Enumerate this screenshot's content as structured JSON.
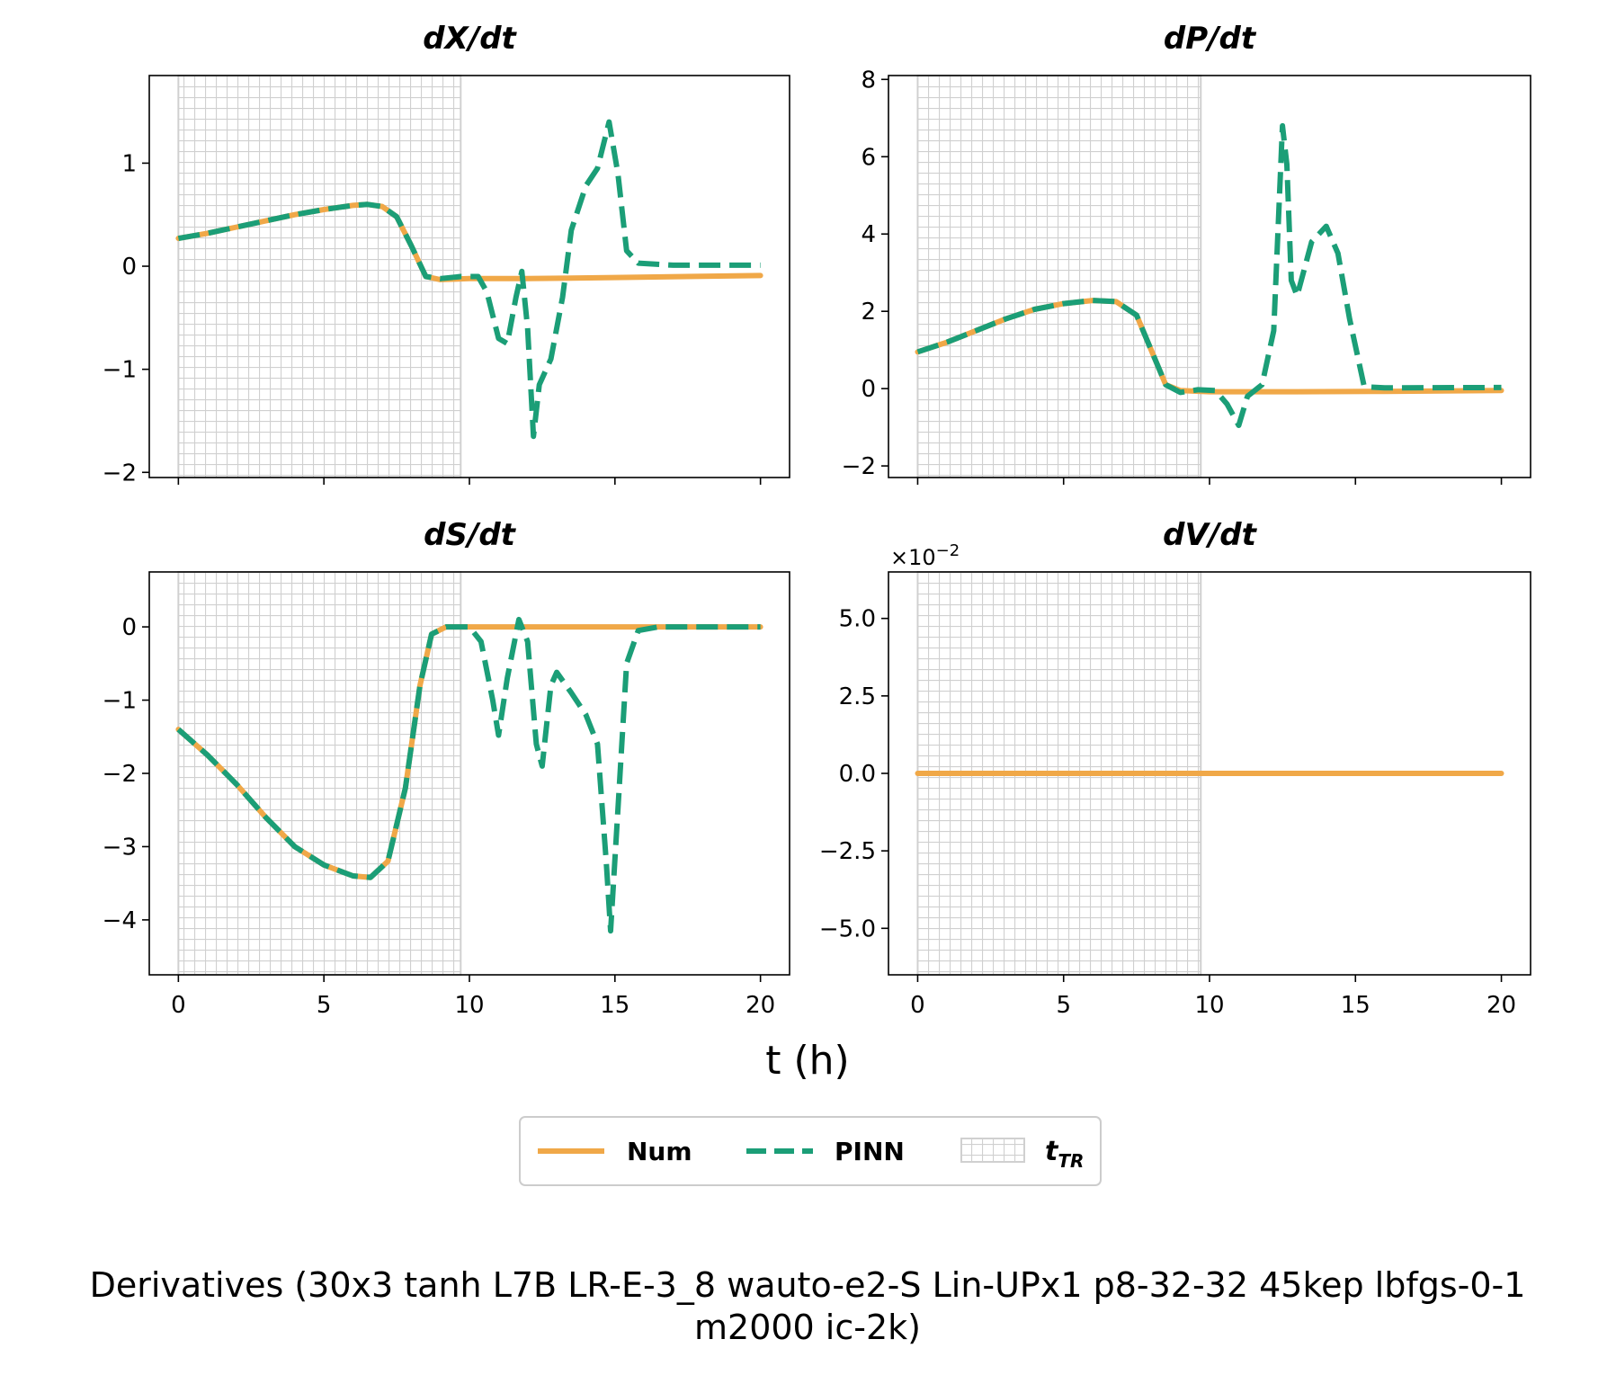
{
  "chart_data": {
    "type": "line",
    "suptitle_lines": [
      "Derivatives (30x3 tanh L7B LR-E-3_8 wauto-e2-S Lin-UPx1 p8-32-32 45kep lbfgs-0-1",
      "m2000 ic-2k)"
    ],
    "xlabel": "t (h)",
    "legend": {
      "placement": "below-center",
      "entries": [
        {
          "label": "Num",
          "style": "solid",
          "color": "#f0a848"
        },
        {
          "label": "PINN",
          "style": "dashed",
          "color": "#1b9e77"
        },
        {
          "label": "t",
          "sub": "TR",
          "style": "hatch",
          "color": "#d0d0d0"
        }
      ]
    },
    "training_region": [
      0,
      9.7
    ],
    "colors": {
      "num": "#f0a848",
      "pinn": "#1b9e77",
      "hatch": "#d0d0d0"
    },
    "subplots": [
      {
        "title": "dX/dt",
        "xlim": [
          -1,
          21
        ],
        "ylim": [
          -2.05,
          1.85
        ],
        "xticks": [
          0,
          5,
          10,
          15,
          20
        ],
        "show_xticklabels": false,
        "yticks": [
          -2,
          -1,
          0,
          1
        ],
        "yticklabels": [
          "−2",
          "−1",
          "0",
          "1"
        ],
        "num": [
          [
            0,
            0.27
          ],
          [
            1,
            0.32
          ],
          [
            2,
            0.38
          ],
          [
            3,
            0.44
          ],
          [
            4,
            0.5
          ],
          [
            5,
            0.55
          ],
          [
            6,
            0.59
          ],
          [
            6.5,
            0.6
          ],
          [
            7,
            0.58
          ],
          [
            7.5,
            0.48
          ],
          [
            8,
            0.2
          ],
          [
            8.5,
            -0.1
          ],
          [
            9,
            -0.13
          ],
          [
            10,
            -0.12
          ],
          [
            12,
            -0.12
          ],
          [
            15,
            -0.11
          ],
          [
            20,
            -0.09
          ]
        ],
        "pinn": [
          [
            0,
            0.27
          ],
          [
            1,
            0.32
          ],
          [
            2,
            0.38
          ],
          [
            3,
            0.44
          ],
          [
            4,
            0.5
          ],
          [
            5,
            0.55
          ],
          [
            6,
            0.59
          ],
          [
            6.5,
            0.6
          ],
          [
            7,
            0.58
          ],
          [
            7.5,
            0.48
          ],
          [
            8,
            0.2
          ],
          [
            8.5,
            -0.1
          ],
          [
            9,
            -0.12
          ],
          [
            9.7,
            -0.1
          ],
          [
            10.3,
            -0.1
          ],
          [
            10.6,
            -0.25
          ],
          [
            11,
            -0.7
          ],
          [
            11.3,
            -0.75
          ],
          [
            11.6,
            -0.3
          ],
          [
            11.8,
            -0.05
          ],
          [
            12,
            -0.6
          ],
          [
            12.2,
            -1.65
          ],
          [
            12.4,
            -1.15
          ],
          [
            12.8,
            -0.9
          ],
          [
            13.2,
            -0.3
          ],
          [
            13.5,
            0.35
          ],
          [
            14,
            0.78
          ],
          [
            14.4,
            0.95
          ],
          [
            14.8,
            1.4
          ],
          [
            15.1,
            0.9
          ],
          [
            15.4,
            0.15
          ],
          [
            15.8,
            0.03
          ],
          [
            17,
            0.01
          ],
          [
            20,
            0.01
          ]
        ]
      },
      {
        "title": "dP/dt",
        "xlim": [
          -1,
          21
        ],
        "ylim": [
          -2.3,
          8.1
        ],
        "xticks": [
          0,
          5,
          10,
          15,
          20
        ],
        "show_xticklabels": false,
        "yticks": [
          -2,
          0,
          2,
          4,
          6,
          8
        ],
        "yticklabels": [
          "−2",
          "0",
          "2",
          "4",
          "6",
          "8"
        ],
        "num": [
          [
            0,
            0.95
          ],
          [
            1,
            1.2
          ],
          [
            2,
            1.5
          ],
          [
            3,
            1.8
          ],
          [
            4,
            2.05
          ],
          [
            5,
            2.2
          ],
          [
            6,
            2.28
          ],
          [
            6.8,
            2.25
          ],
          [
            7.5,
            1.9
          ],
          [
            8,
            1.0
          ],
          [
            8.5,
            0.1
          ],
          [
            9,
            -0.05
          ],
          [
            10,
            -0.08
          ],
          [
            13,
            -0.08
          ],
          [
            16,
            -0.07
          ],
          [
            20,
            -0.05
          ]
        ],
        "pinn": [
          [
            0,
            0.95
          ],
          [
            1,
            1.2
          ],
          [
            2,
            1.5
          ],
          [
            3,
            1.8
          ],
          [
            4,
            2.05
          ],
          [
            5,
            2.2
          ],
          [
            6,
            2.28
          ],
          [
            6.8,
            2.25
          ],
          [
            7.5,
            1.9
          ],
          [
            8,
            1.0
          ],
          [
            8.5,
            0.1
          ],
          [
            9,
            -0.1
          ],
          [
            9.6,
            -0.03
          ],
          [
            10.2,
            -0.05
          ],
          [
            10.6,
            -0.4
          ],
          [
            11,
            -0.95
          ],
          [
            11.3,
            -0.2
          ],
          [
            11.8,
            0.1
          ],
          [
            12.2,
            1.5
          ],
          [
            12.5,
            6.8
          ],
          [
            12.65,
            5.8
          ],
          [
            12.8,
            2.8
          ],
          [
            13,
            2.4
          ],
          [
            13.5,
            3.8
          ],
          [
            14,
            4.2
          ],
          [
            14.4,
            3.5
          ],
          [
            14.8,
            1.8
          ],
          [
            15.3,
            0.05
          ],
          [
            16,
            0.02
          ],
          [
            20,
            0.03
          ]
        ]
      },
      {
        "title": "dS/dt",
        "xlim": [
          -1,
          21
        ],
        "ylim": [
          -4.75,
          0.75
        ],
        "xticks": [
          0,
          5,
          10,
          15,
          20
        ],
        "xticklabels": [
          "0",
          "5",
          "10",
          "15",
          "20"
        ],
        "show_xticklabels": true,
        "yticks": [
          -4,
          -3,
          -2,
          -1,
          0
        ],
        "yticklabels": [
          "−4",
          "−3",
          "−2",
          "−1",
          "0"
        ],
        "num": [
          [
            0,
            -1.4
          ],
          [
            1,
            -1.75
          ],
          [
            2,
            -2.15
          ],
          [
            3,
            -2.6
          ],
          [
            4,
            -3.0
          ],
          [
            5,
            -3.25
          ],
          [
            6,
            -3.4
          ],
          [
            6.6,
            -3.42
          ],
          [
            7.2,
            -3.2
          ],
          [
            7.8,
            -2.2
          ],
          [
            8.3,
            -0.8
          ],
          [
            8.7,
            -0.1
          ],
          [
            9.2,
            0
          ],
          [
            10,
            0
          ],
          [
            15,
            0
          ],
          [
            20,
            0
          ]
        ],
        "pinn": [
          [
            0,
            -1.4
          ],
          [
            1,
            -1.75
          ],
          [
            2,
            -2.15
          ],
          [
            3,
            -2.6
          ],
          [
            4,
            -3.0
          ],
          [
            5,
            -3.25
          ],
          [
            6,
            -3.4
          ],
          [
            6.6,
            -3.42
          ],
          [
            7.2,
            -3.2
          ],
          [
            7.8,
            -2.2
          ],
          [
            8.3,
            -0.8
          ],
          [
            8.7,
            -0.1
          ],
          [
            9.2,
            0
          ],
          [
            10,
            0
          ],
          [
            10.4,
            -0.2
          ],
          [
            10.8,
            -1.0
          ],
          [
            11,
            -1.48
          ],
          [
            11.3,
            -0.7
          ],
          [
            11.7,
            0.1
          ],
          [
            12,
            -0.2
          ],
          [
            12.3,
            -1.6
          ],
          [
            12.5,
            -1.9
          ],
          [
            12.8,
            -0.8
          ],
          [
            13,
            -0.62
          ],
          [
            13.5,
            -0.9
          ],
          [
            14,
            -1.2
          ],
          [
            14.4,
            -1.6
          ],
          [
            14.7,
            -3.2
          ],
          [
            14.85,
            -4.15
          ],
          [
            15.1,
            -2.5
          ],
          [
            15.4,
            -0.5
          ],
          [
            15.8,
            -0.05
          ],
          [
            16.5,
            0
          ],
          [
            20,
            0
          ]
        ]
      },
      {
        "title": "dV/dt",
        "xlim": [
          -1,
          21
        ],
        "ylim": [
          -0.065,
          0.065
        ],
        "xticks": [
          0,
          5,
          10,
          15,
          20
        ],
        "xticklabels": [
          "0",
          "5",
          "10",
          "15",
          "20"
        ],
        "show_xticklabels": true,
        "yticks": [
          -0.05,
          -0.025,
          0,
          0.025,
          0.05
        ],
        "yticklabels": [
          "−5.0",
          "−2.5",
          "0.0",
          "2.5",
          "5.0"
        ],
        "offset_text": "×10",
        "offset_exp": "−2",
        "num": [
          [
            0,
            0
          ],
          [
            20,
            0
          ]
        ],
        "pinn": []
      }
    ]
  }
}
